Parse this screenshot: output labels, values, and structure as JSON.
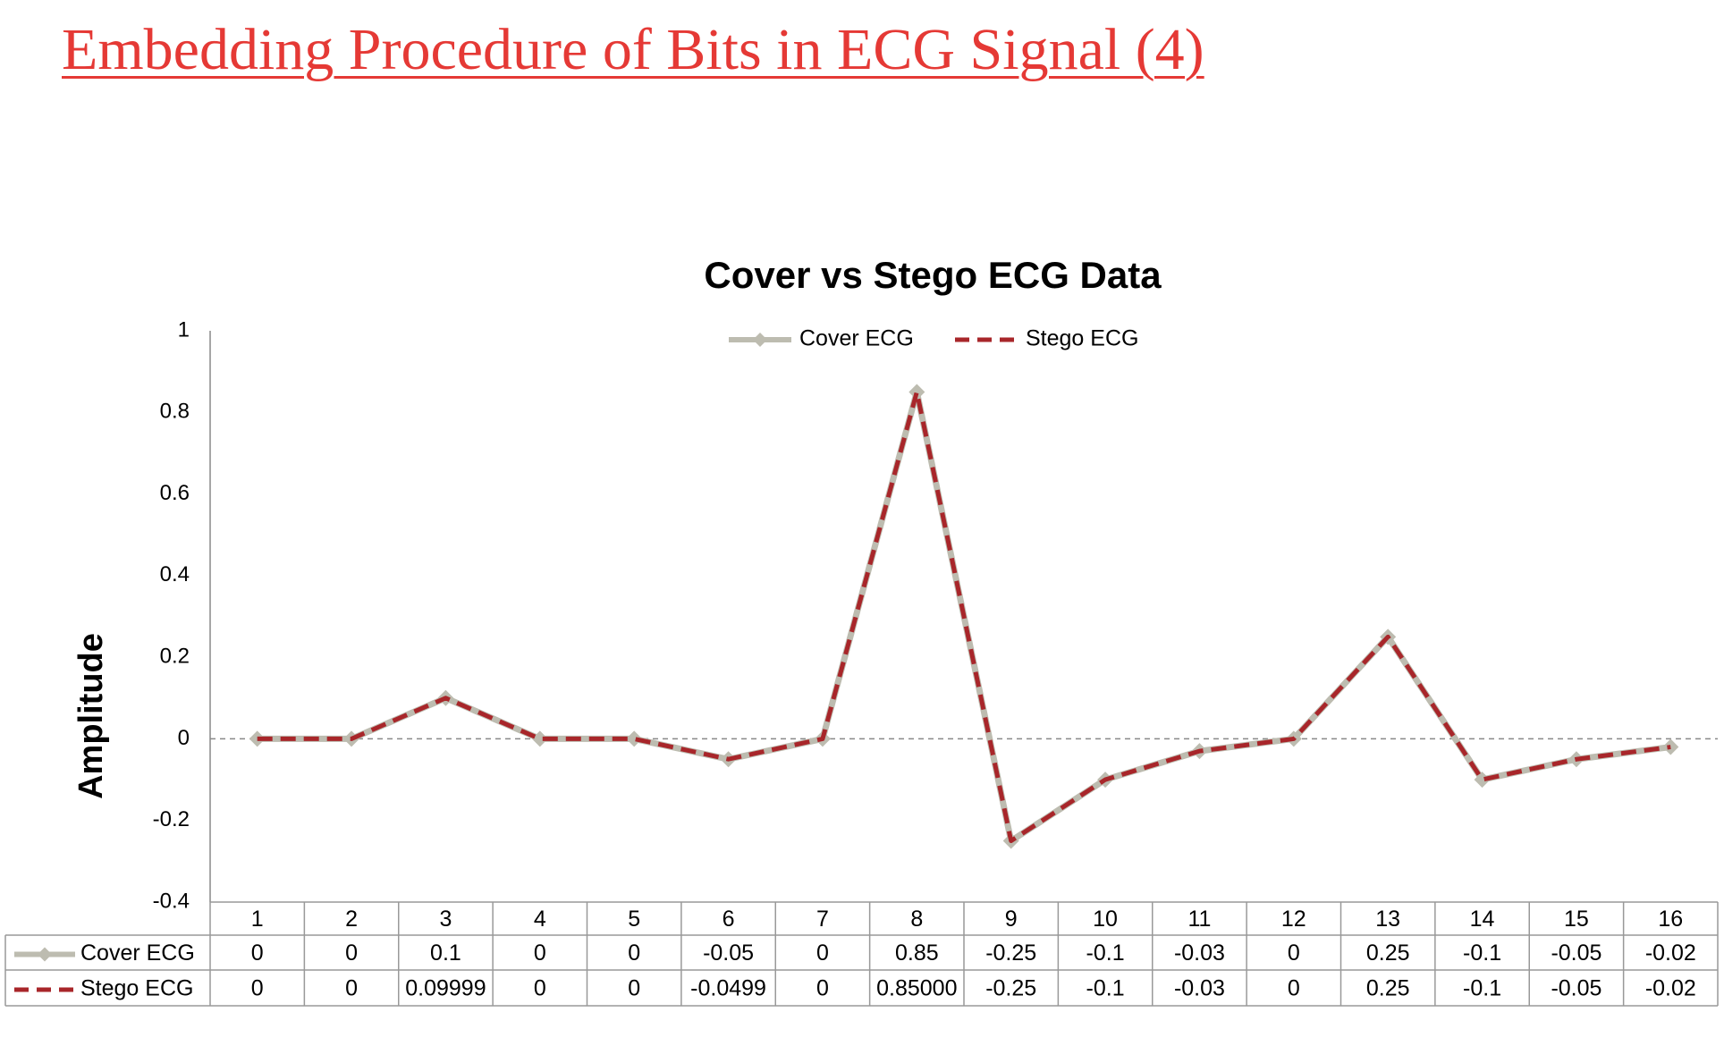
{
  "page_title": "Embedding Procedure of Bits in ECG Signal (4)",
  "chart_data": {
    "type": "line",
    "title": "Cover vs Stego ECG Data",
    "y_label": "Amplitude",
    "categories": [
      "1",
      "2",
      "3",
      "4",
      "5",
      "6",
      "7",
      "8",
      "9",
      "10",
      "11",
      "12",
      "13",
      "14",
      "15",
      "16"
    ],
    "series": [
      {
        "name": "Cover ECG",
        "color": "#bdbcb0",
        "values": [
          0,
          0,
          0.1,
          0,
          0,
          -0.05,
          0,
          0.85,
          -0.25,
          -0.1,
          -0.03,
          0,
          0.25,
          -0.1,
          -0.05,
          -0.02
        ]
      },
      {
        "name": "Stego ECG",
        "color": "#a8262a",
        "values": [
          0,
          0,
          0.09999,
          0,
          0,
          -0.0499,
          0,
          0.85,
          -0.25,
          -0.1,
          -0.03,
          0,
          0.25,
          -0.1,
          -0.05,
          -0.02
        ],
        "value_labels": [
          "0",
          "0",
          "0.09999",
          "0",
          "0",
          "-0.0499",
          "0",
          "0.85000",
          "-0.25",
          "-0.1",
          "-0.03",
          "0",
          "0.25",
          "-0.1",
          "-0.05",
          "-0.02"
        ]
      }
    ],
    "ylim": [
      -0.4,
      1
    ],
    "yticks": [
      1,
      0.8,
      0.6,
      0.4,
      0.2,
      0,
      -0.2,
      -0.4
    ],
    "legend": "top",
    "data_table": true
  }
}
